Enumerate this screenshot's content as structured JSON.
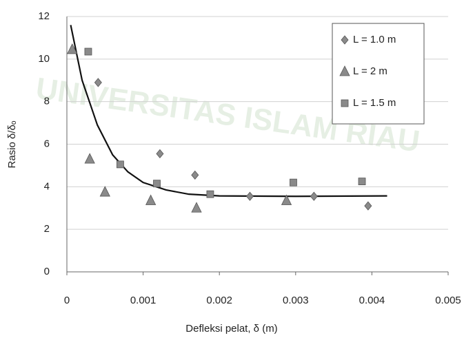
{
  "chart_data": {
    "type": "scatter",
    "watermark": "UNIVERSITAS ISLAM RIAU",
    "xlabel": "Defleksi pelat, δ (m)",
    "ylabel": "Rasio δ/δₒ",
    "xlim": [
      0,
      0.005
    ],
    "xticks": [
      0,
      0.001,
      0.002,
      0.003,
      0.004,
      0.005
    ],
    "ylim": [
      0,
      12
    ],
    "yticks": [
      0,
      2,
      4,
      6,
      8,
      10,
      12
    ],
    "grid": true,
    "legend": "upper right",
    "series": [
      {
        "name": "L = 1.0 m",
        "marker": "diamond",
        "color": "#8a8a8a",
        "x": [
          0.00041,
          0.00122,
          0.00168,
          0.0024,
          0.00324,
          0.00395
        ],
        "values": [
          8.9,
          5.55,
          4.55,
          3.55,
          3.55,
          3.1
        ]
      },
      {
        "name": "L = 2 m",
        "marker": "triangle",
        "color": "#8a8a8a",
        "x": [
          7e-05,
          0.0003,
          0.0005,
          0.0011,
          0.0017,
          0.00288
        ],
        "values": [
          10.45,
          5.3,
          3.75,
          3.35,
          3.0,
          3.35
        ]
      },
      {
        "name": "L = 1.5 m",
        "marker": "square",
        "color": "#8a8a8a",
        "x": [
          0.00028,
          0.0007,
          0.00118,
          0.00188,
          0.00297,
          0.00387
        ],
        "values": [
          10.35,
          5.05,
          4.15,
          3.65,
          4.2,
          4.25
        ]
      }
    ],
    "trendline": {
      "color": "#111111",
      "x": [
        5e-05,
        0.0002,
        0.0004,
        0.0006,
        0.0008,
        0.001,
        0.0013,
        0.0016,
        0.002,
        0.003,
        0.0042
      ],
      "values": [
        11.6,
        9.0,
        6.9,
        5.5,
        4.7,
        4.2,
        3.85,
        3.65,
        3.57,
        3.55,
        3.57
      ]
    }
  }
}
